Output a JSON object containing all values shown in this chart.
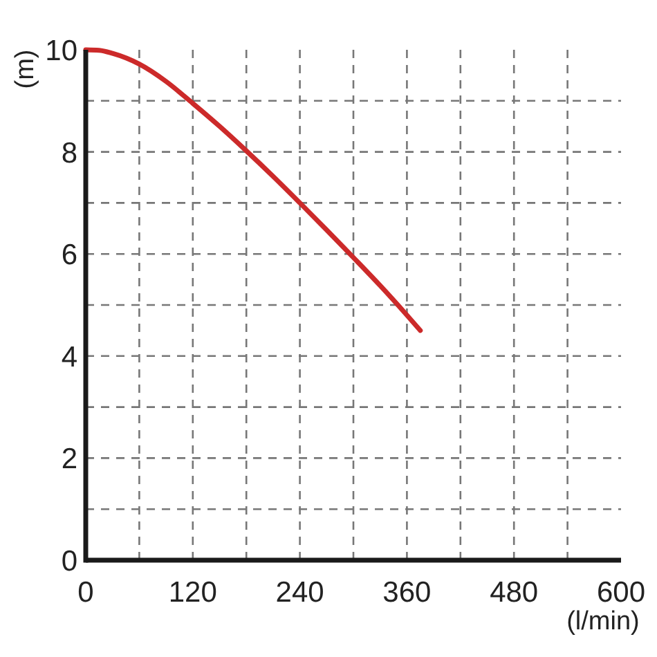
{
  "chart_data": {
    "type": "line",
    "xlabel": "(l/min)",
    "ylabel": "(m)",
    "x": [
      0,
      15,
      30,
      60,
      90,
      120,
      150,
      180,
      210,
      240,
      270,
      300,
      330,
      360,
      375
    ],
    "series": [
      {
        "color": "#cc2a2a",
        "values": [
          10,
          9.99,
          9.93,
          9.72,
          9.38,
          8.95,
          8.5,
          8.02,
          7.52,
          7.0,
          6.47,
          5.93,
          5.38,
          4.8,
          4.5
        ]
      }
    ],
    "xlim": [
      0,
      600
    ],
    "ylim": [
      0,
      10
    ],
    "xticks": [
      0,
      {
        "value": 60,
        "label": null
      },
      120,
      {
        "value": 180,
        "label": null
      },
      240,
      {
        "value": 300,
        "label": null
      },
      360,
      {
        "value": 420,
        "label": null
      },
      480,
      {
        "value": 540,
        "label": null
      },
      600
    ],
    "yticks": [
      0,
      {
        "value": 1,
        "label": null
      },
      2,
      {
        "value": 3,
        "label": null
      },
      4,
      {
        "value": 5,
        "label": null
      },
      6,
      {
        "value": 7,
        "label": null
      },
      8,
      {
        "value": 9,
        "label": null
      },
      10
    ],
    "grid": true
  }
}
